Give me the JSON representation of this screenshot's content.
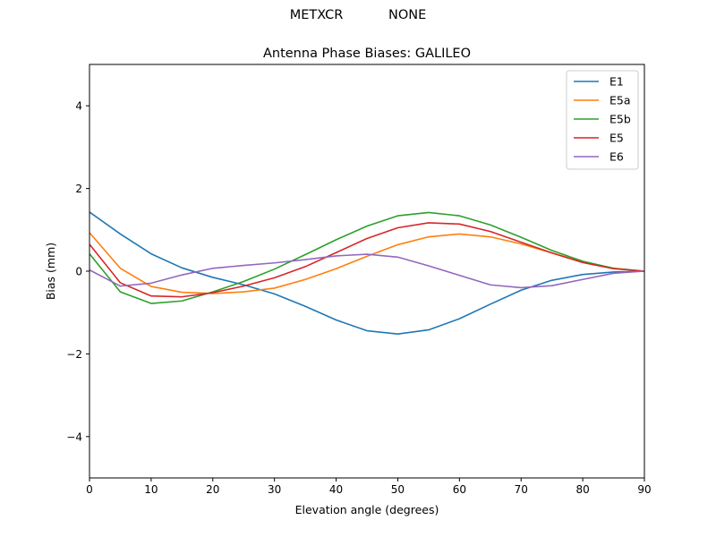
{
  "figure": {
    "suptitle": "METXCR           NONE"
  },
  "chart_data": {
    "type": "line",
    "title": "Antenna Phase Biases: GALILEO",
    "xlabel": "Elevation angle (degrees)",
    "ylabel": "Bias (mm)",
    "xlim": [
      0,
      90
    ],
    "ylim": [
      -5,
      5
    ],
    "xticks": [
      0,
      10,
      20,
      30,
      40,
      50,
      60,
      70,
      80,
      90
    ],
    "yticks": [
      -4,
      -2,
      0,
      2,
      4
    ],
    "ytick_labels": [
      "−4",
      "−2",
      "0",
      "2",
      "4"
    ],
    "grid": false,
    "legend_position": "top-right",
    "x": [
      0,
      5,
      10,
      15,
      20,
      25,
      30,
      35,
      40,
      45,
      50,
      55,
      60,
      65,
      70,
      75,
      80,
      85,
      90
    ],
    "series": [
      {
        "name": "E1",
        "color": "#1f77b4",
        "values": [
          1.43,
          0.9,
          0.42,
          0.08,
          -0.15,
          -0.33,
          -0.55,
          -0.85,
          -1.18,
          -1.44,
          -1.52,
          -1.42,
          -1.15,
          -0.8,
          -0.46,
          -0.22,
          -0.08,
          -0.02,
          0.0
        ]
      },
      {
        "name": "E5a",
        "color": "#ff7f0e",
        "values": [
          0.93,
          0.07,
          -0.37,
          -0.51,
          -0.54,
          -0.5,
          -0.41,
          -0.2,
          0.06,
          0.36,
          0.64,
          0.83,
          0.9,
          0.83,
          0.66,
          0.44,
          0.22,
          0.07,
          0.0
        ]
      },
      {
        "name": "E5b",
        "color": "#2ca02c",
        "values": [
          0.42,
          -0.5,
          -0.78,
          -0.72,
          -0.5,
          -0.25,
          0.05,
          0.4,
          0.76,
          1.09,
          1.34,
          1.42,
          1.34,
          1.12,
          0.82,
          0.5,
          0.24,
          0.07,
          0.0
        ]
      },
      {
        "name": "E5",
        "color": "#d62728",
        "values": [
          0.65,
          -0.28,
          -0.6,
          -0.62,
          -0.52,
          -0.36,
          -0.16,
          0.11,
          0.45,
          0.79,
          1.05,
          1.17,
          1.14,
          0.96,
          0.7,
          0.44,
          0.21,
          0.06,
          0.0
        ]
      },
      {
        "name": "E6",
        "color": "#9467bd",
        "values": [
          0.03,
          -0.36,
          -0.29,
          -0.09,
          0.07,
          0.14,
          0.2,
          0.28,
          0.37,
          0.41,
          0.34,
          0.13,
          -0.1,
          -0.33,
          -0.4,
          -0.35,
          -0.2,
          -0.05,
          0.0
        ]
      }
    ]
  }
}
